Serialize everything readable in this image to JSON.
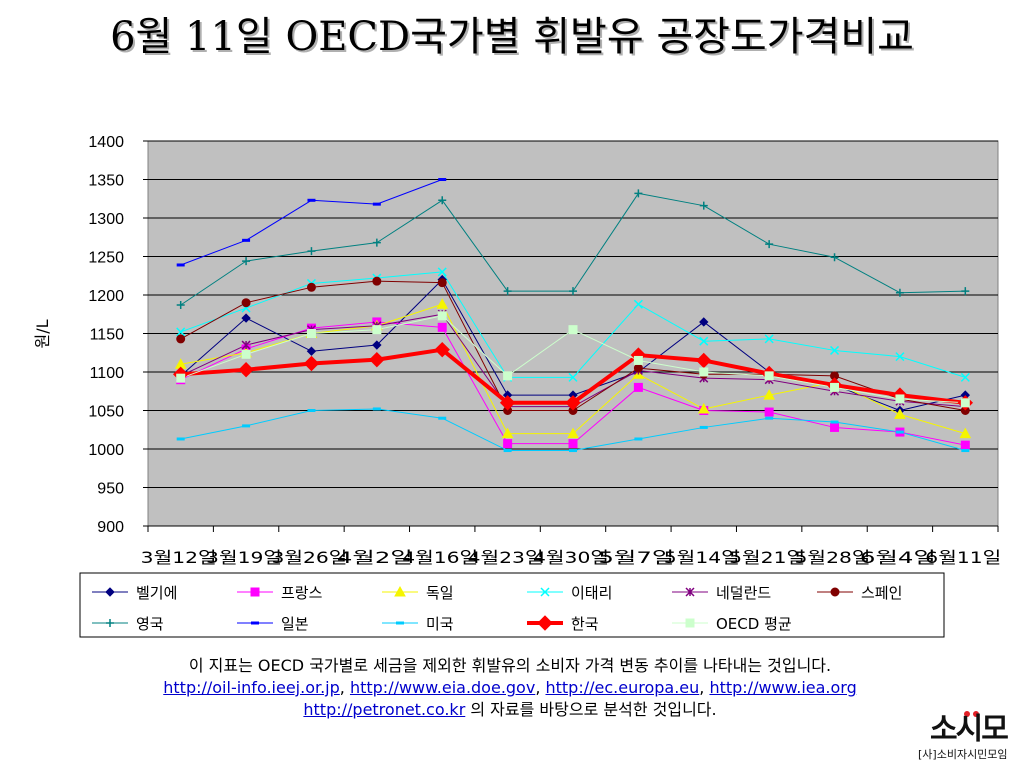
{
  "title": "6월 11일 OECD국가별 휘발유 공장도가격비교",
  "caption": {
    "line1": "이 지표는 OECD 국가별로 세금을 제외한 휘발유의 소비자 가격 변동 추이를 나타내는 것입니다.",
    "links": [
      "http://oil-info.ieej.or.jp",
      "http://www.eia.doe.gov",
      "http://ec.europa.eu",
      "http://www.iea.org"
    ],
    "link5": "http://petronet.co.kr",
    "line3_suffix": " 의 자료를 바탕으로 분석한 것입니다."
  },
  "logo": {
    "main": "소시모",
    "sub": "[사]소비자시민모임"
  },
  "chart_data": {
    "type": "line",
    "title": "",
    "xlabel": "",
    "ylabel": "원/L",
    "ylim": [
      900,
      1400
    ],
    "yticks": [
      900,
      950,
      1000,
      1050,
      1100,
      1150,
      1200,
      1250,
      1300,
      1350,
      1400
    ],
    "grid": true,
    "legend_position": "bottom",
    "categories": [
      "3월12일",
      "3월19일",
      "3월26일",
      "4월2일",
      "4월16일",
      "4월23일",
      "4월30일",
      "5월7일",
      "5월14일",
      "5월21일",
      "5월28일",
      "6월4일",
      "6월11일"
    ],
    "series": [
      {
        "name": "벨기에",
        "color": "#000080",
        "marker": "diamond",
        "width": 1,
        "values": [
          1095,
          1170,
          1127,
          1135,
          1220,
          1070,
          1070,
          1100,
          1165,
          1100,
          1083,
          1050,
          1070
        ]
      },
      {
        "name": "프랑스",
        "color": "#ff00ff",
        "marker": "square",
        "width": 1,
        "values": [
          1090,
          1130,
          1157,
          1165,
          1158,
          1007,
          1007,
          1080,
          1050,
          1048,
          1028,
          1022,
          1005
        ]
      },
      {
        "name": "독일",
        "color": "#f5f500",
        "marker": "triangle",
        "width": 1,
        "values": [
          1110,
          1125,
          1150,
          1160,
          1188,
          1020,
          1020,
          1097,
          1052,
          1070,
          1087,
          1045,
          1020
        ]
      },
      {
        "name": "이태리",
        "color": "#00ffff",
        "marker": "x",
        "width": 1,
        "values": [
          1152,
          1183,
          1215,
          1222,
          1230,
          1093,
          1093,
          1188,
          1140,
          1143,
          1128,
          1120,
          1093
        ]
      },
      {
        "name": "네덜란드",
        "color": "#800080",
        "marker": "star",
        "width": 1,
        "values": [
          1095,
          1135,
          1155,
          1160,
          1175,
          1055,
          1055,
          1102,
          1092,
          1090,
          1075,
          1062,
          1055
        ]
      },
      {
        "name": "스페인",
        "color": "#800000",
        "marker": "circle",
        "width": 1,
        "values": [
          1143,
          1190,
          1210,
          1218,
          1216,
          1050,
          1050,
          1105,
          1097,
          1097,
          1095,
          1065,
          1050
        ]
      },
      {
        "name": "영국",
        "color": "#008080",
        "marker": "plus",
        "width": 1,
        "values": [
          1187,
          1244,
          1257,
          1268,
          1323,
          1205,
          1205,
          1332,
          1316,
          1266,
          1249,
          1203,
          1205
        ]
      },
      {
        "name": "일본",
        "color": "#0000ff",
        "marker": "dash",
        "width": 1,
        "values": [
          1239,
          1271,
          1323,
          1318,
          1350,
          null,
          null,
          null,
          null,
          null,
          null,
          null,
          null
        ]
      },
      {
        "name": "미국",
        "color": "#00ccff",
        "marker": "dash",
        "width": 1,
        "values": [
          1013,
          1030,
          1050,
          1052,
          1040,
          998,
          998,
          1013,
          1028,
          1040,
          1035,
          1022,
          998
        ]
      },
      {
        "name": "한국",
        "color": "#ff0000",
        "marker": "diamond",
        "width": 4,
        "values": [
          1097,
          1103,
          1111,
          1116,
          1129,
          1060,
          1060,
          1122,
          1115,
          1098,
          1083,
          1070,
          1060
        ]
      },
      {
        "name": "OECD 평균",
        "color": "#ccffcc",
        "marker": "square",
        "width": 1,
        "values": [
          1092,
          1123,
          1150,
          1155,
          1173,
          1095,
          1155,
          1115,
          1100,
          1095,
          1080,
          1065,
          1060
        ]
      }
    ]
  }
}
